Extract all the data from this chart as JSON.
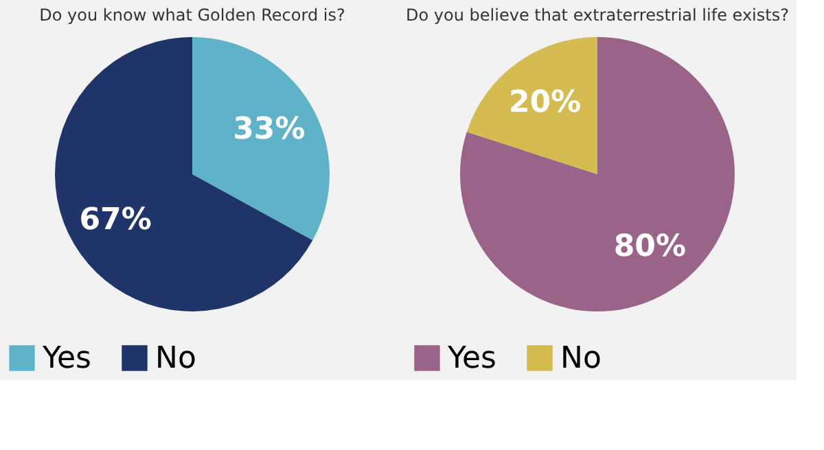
{
  "chart_data": [
    {
      "type": "pie",
      "title": "Do you know what Golden Record is?",
      "categories": [
        "Yes",
        "No"
      ],
      "values": [
        33,
        67
      ],
      "colors": [
        "#5fb3c8",
        "#1f3569"
      ],
      "value_labels": [
        "33%",
        "67%"
      ],
      "legend": "bottom"
    },
    {
      "type": "pie",
      "title": "Do you believe that extraterrestrial life exists?",
      "categories": [
        "Yes",
        "No"
      ],
      "values": [
        80,
        20
      ],
      "colors": [
        "#9a6489",
        "#d4bc50"
      ],
      "value_labels": [
        "80%",
        "20%"
      ],
      "legend": "bottom"
    }
  ]
}
